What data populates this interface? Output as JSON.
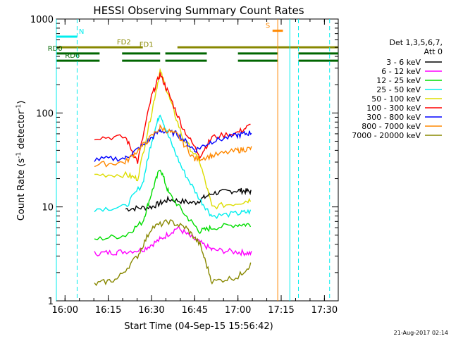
{
  "chart_data": {
    "type": "line",
    "title": "HESSI Observing Summary Count Rates",
    "xlabel": "Start Time (04-Sep-15 15:56:42)",
    "ylabel_main": "Count Rate (s",
    "ylabel_sup1": "-1",
    "ylabel_mid": " detector",
    "ylabel_sup2": "-1",
    "ylabel_end": ")",
    "y_scale": "log",
    "ylim": [
      1,
      1000
    ],
    "xlim_minutes": [
      15.95,
      17.58
    ],
    "x_ticks": [
      {
        "label": "16:00",
        "value": 16.0
      },
      {
        "label": "16:15",
        "value": 16.25
      },
      {
        "label": "16:30",
        "value": 16.5
      },
      {
        "label": "16:45",
        "value": 16.75
      },
      {
        "label": "17:00",
        "value": 17.0
      },
      {
        "label": "17:15",
        "value": 17.25
      },
      {
        "label": "17:30",
        "value": 17.5
      }
    ],
    "y_ticks": [
      {
        "label": "1",
        "value": 1
      },
      {
        "label": "10",
        "value": 10
      },
      {
        "label": "100",
        "value": 100
      },
      {
        "label": "1000",
        "value": 1000
      }
    ],
    "legend_header": [
      "Det 1,3,5,6,7,",
      "Att 0"
    ],
    "legend_placement": "right",
    "series": [
      {
        "name": "3 - 6 keV",
        "color": "#000000",
        "points": [
          [
            16.35,
            9.5
          ],
          [
            16.5,
            10
          ],
          [
            16.6,
            12
          ],
          [
            16.75,
            11
          ],
          [
            16.85,
            14
          ],
          [
            17.0,
            15
          ],
          [
            17.08,
            14.5
          ]
        ]
      },
      {
        "name": "6 - 12 keV",
        "color": "#ff00ff",
        "points": [
          [
            16.17,
            3.2
          ],
          [
            16.3,
            3.3
          ],
          [
            16.45,
            3.5
          ],
          [
            16.55,
            4.5
          ],
          [
            16.65,
            6
          ],
          [
            16.75,
            4.5
          ],
          [
            16.85,
            3.5
          ],
          [
            17.0,
            3.3
          ],
          [
            17.08,
            3.2
          ]
        ]
      },
      {
        "name": "12 - 25 keV",
        "color": "#00dd00",
        "points": [
          [
            16.17,
            4.5
          ],
          [
            16.35,
            5
          ],
          [
            16.45,
            7
          ],
          [
            16.5,
            14
          ],
          [
            16.55,
            26
          ],
          [
            16.6,
            14
          ],
          [
            16.7,
            8
          ],
          [
            16.78,
            5.5
          ],
          [
            16.85,
            6
          ],
          [
            17.0,
            6.5
          ],
          [
            17.08,
            6.5
          ]
        ]
      },
      {
        "name": "25 - 50 keV",
        "color": "#00eeee",
        "points": [
          [
            16.17,
            9.5
          ],
          [
            16.35,
            10
          ],
          [
            16.45,
            18
          ],
          [
            16.5,
            50
          ],
          [
            16.55,
            100
          ],
          [
            16.6,
            55
          ],
          [
            16.68,
            25
          ],
          [
            16.78,
            12
          ],
          [
            16.85,
            8
          ],
          [
            17.0,
            8.5
          ],
          [
            17.08,
            9
          ]
        ]
      },
      {
        "name": "50 - 100 keV",
        "color": "#dddd00",
        "points": [
          [
            16.17,
            22
          ],
          [
            16.35,
            22
          ],
          [
            16.42,
            20
          ],
          [
            16.5,
            100
          ],
          [
            16.55,
            280
          ],
          [
            16.6,
            150
          ],
          [
            16.68,
            55
          ],
          [
            16.78,
            30
          ],
          [
            16.85,
            10
          ],
          [
            17.0,
            11
          ],
          [
            17.08,
            12
          ]
        ]
      },
      {
        "name": "100 - 300 keV",
        "color": "#ff0000",
        "points": [
          [
            16.17,
            55
          ],
          [
            16.35,
            55
          ],
          [
            16.42,
            30
          ],
          [
            16.5,
            150
          ],
          [
            16.55,
            260
          ],
          [
            16.6,
            160
          ],
          [
            16.68,
            70
          ],
          [
            16.78,
            35
          ],
          [
            16.85,
            55
          ],
          [
            17.0,
            62
          ],
          [
            17.08,
            75
          ]
        ]
      },
      {
        "name": "300 - 800 keV",
        "color": "#0000ff",
        "points": [
          [
            16.17,
            32
          ],
          [
            16.35,
            33
          ],
          [
            16.45,
            45
          ],
          [
            16.55,
            65
          ],
          [
            16.65,
            60
          ],
          [
            16.75,
            40
          ],
          [
            16.85,
            50
          ],
          [
            17.0,
            58
          ],
          [
            17.08,
            62
          ]
        ]
      },
      {
        "name": "800 - 7000 keV",
        "color": "#ff8800",
        "points": [
          [
            16.17,
            28
          ],
          [
            16.35,
            30
          ],
          [
            16.45,
            45
          ],
          [
            16.55,
            70
          ],
          [
            16.65,
            58
          ],
          [
            16.75,
            32
          ],
          [
            16.85,
            35
          ],
          [
            17.0,
            40
          ],
          [
            17.08,
            42
          ]
        ]
      },
      {
        "name": "7000 - 20000 keV",
        "color": "#888800",
        "points": [
          [
            16.17,
            1.5
          ],
          [
            16.3,
            1.7
          ],
          [
            16.42,
            3
          ],
          [
            16.5,
            6
          ],
          [
            16.6,
            7
          ],
          [
            16.7,
            6
          ],
          [
            16.78,
            4
          ],
          [
            16.85,
            1.6
          ],
          [
            17.0,
            1.8
          ],
          [
            17.08,
            2.5
          ]
        ]
      }
    ],
    "flags": [
      {
        "name": "N",
        "color": "#00eeee",
        "y": 650,
        "segments": [
          [
            15.95,
            16.07
          ]
        ],
        "label_at": 16.08
      },
      {
        "name": "FD2",
        "color": "#888800",
        "y": 500,
        "segments": [
          [
            15.95,
            16.45
          ],
          [
            16.65,
            17.58
          ]
        ],
        "label_at": 16.3
      },
      {
        "name": "FD1",
        "color": "#888800",
        "y": 470,
        "segments": [],
        "label_at": 16.43
      },
      {
        "name": "RD0",
        "color": "#006600",
        "y": 430,
        "segments": [
          [
            15.95,
            16.2
          ],
          [
            16.33,
            16.55
          ],
          [
            16.58,
            16.82
          ],
          [
            17.0,
            17.23
          ],
          [
            17.35,
            17.58
          ]
        ],
        "label_at": 15.9
      },
      {
        "name": "RD6",
        "color": "#006600",
        "y": 360,
        "segments": [
          [
            15.95,
            16.2
          ],
          [
            16.33,
            16.55
          ],
          [
            16.58,
            16.82
          ],
          [
            17.0,
            17.23
          ],
          [
            17.35,
            17.58
          ]
        ],
        "label_at": 16.0
      },
      {
        "name": "S",
        "color": "#ff8800",
        "y": 750,
        "segments": [
          [
            17.2,
            17.26
          ]
        ],
        "label_at": 17.16
      }
    ],
    "vlines": [
      {
        "x": 15.95,
        "color": "#00eeee",
        "dash": false
      },
      {
        "x": 16.07,
        "color": "#00eeee",
        "dash": true
      },
      {
        "x": 17.23,
        "color": "#ff8800",
        "dash": false
      },
      {
        "x": 17.3,
        "color": "#00eeee",
        "dash": false
      },
      {
        "x": 17.35,
        "color": "#00eeee",
        "dash": true
      },
      {
        "x": 17.53,
        "color": "#00eeee",
        "dash": true
      }
    ],
    "footer_date": "21-Aug-2017 02:14"
  }
}
